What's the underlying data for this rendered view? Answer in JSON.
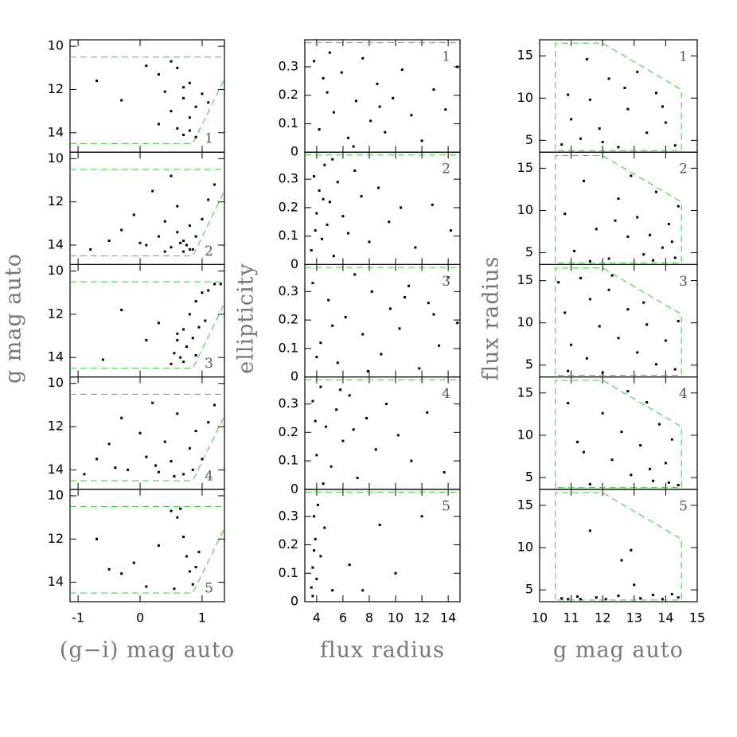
{
  "chart_data": [
    {
      "type": "scatter",
      "label": "1",
      "xlim": [
        -1.13,
        1.36
      ],
      "ylim": [
        14.9,
        9.7
      ],
      "yticks": [
        10,
        12,
        14
      ],
      "color": "#000000",
      "x": [
        -0.7,
        -0.3,
        0.1,
        0.3,
        0.4,
        0.5,
        0.6,
        0.6,
        0.7,
        0.7,
        0.8,
        0.8,
        0.9,
        0.9,
        1.0,
        0.5,
        0.3,
        0.8,
        0.7,
        1.1
      ],
      "y": [
        11.6,
        12.5,
        10.9,
        11.3,
        12.1,
        13.0,
        11.0,
        13.8,
        12.4,
        14.1,
        13.3,
        11.7,
        12.8,
        14.2,
        12.2,
        10.7,
        13.6,
        13.9,
        11.9,
        12.6
      ],
      "boundary": {
        "color": "#33cc33",
        "x": [
          -1.13,
          1.36,
          null,
          -1.13,
          0.85,
          1.36
        ],
        "y": [
          10.5,
          10.5,
          null,
          14.5,
          14.5,
          11.5
        ]
      }
    },
    {
      "type": "scatter",
      "label": "2",
      "xlim": [
        -1.13,
        1.36
      ],
      "ylim": [
        14.9,
        9.7
      ],
      "yticks": [
        10,
        12,
        14
      ],
      "color": "#000000",
      "x": [
        -0.8,
        -0.5,
        -0.3,
        -0.1,
        0.1,
        0.2,
        0.3,
        0.4,
        0.5,
        0.5,
        0.6,
        0.6,
        0.7,
        0.7,
        0.8,
        0.8,
        0.9,
        1.0,
        1.1,
        1.2,
        0.0,
        0.4,
        0.65,
        0.75,
        0.85
      ],
      "y": [
        14.2,
        13.8,
        13.3,
        12.6,
        14.0,
        11.5,
        13.6,
        12.9,
        14.1,
        10.8,
        13.4,
        12.2,
        14.3,
        13.8,
        13.1,
        14.2,
        13.6,
        12.8,
        11.9,
        11.2,
        13.9,
        14.3,
        13.9,
        14.0,
        14.2
      ],
      "boundary": {
        "color": "#33cc33",
        "x": [
          -1.13,
          1.36,
          null,
          -1.13,
          0.85,
          1.36
        ],
        "y": [
          10.5,
          10.5,
          null,
          14.5,
          14.5,
          11.5
        ]
      }
    },
    {
      "type": "scatter",
      "label": "3",
      "ylabel": "g mag auto",
      "xlim": [
        -1.13,
        1.36
      ],
      "ylim": [
        14.9,
        9.7
      ],
      "yticks": [
        10,
        12,
        14
      ],
      "color": "#000000",
      "x": [
        -0.6,
        -0.3,
        0.1,
        0.3,
        0.5,
        0.55,
        0.6,
        0.65,
        0.7,
        0.75,
        0.8,
        0.85,
        0.9,
        0.95,
        1.0,
        1.1,
        1.2,
        1.3,
        0.7,
        0.9,
        1.05,
        0.6
      ],
      "y": [
        14.1,
        11.8,
        13.2,
        12.4,
        14.3,
        13.8,
        13.2,
        14.0,
        12.7,
        13.5,
        12.0,
        13.1,
        11.4,
        12.6,
        11.0,
        10.9,
        10.6,
        10.6,
        14.2,
        13.9,
        12.3,
        12.9
      ],
      "boundary": {
        "color": "#33cc33",
        "x": [
          -1.13,
          1.36,
          null,
          -1.13,
          0.85,
          1.36
        ],
        "y": [
          10.5,
          10.5,
          null,
          14.5,
          14.5,
          11.5
        ]
      }
    },
    {
      "type": "scatter",
      "label": "4",
      "xlim": [
        -1.13,
        1.36
      ],
      "ylim": [
        14.9,
        9.7
      ],
      "yticks": [
        10,
        12,
        14
      ],
      "color": "#000000",
      "x": [
        -0.9,
        -0.7,
        -0.5,
        -0.3,
        -0.2,
        0.0,
        0.1,
        0.2,
        0.3,
        0.4,
        0.5,
        0.6,
        0.7,
        0.8,
        0.9,
        1.0,
        1.1,
        1.2,
        -0.4,
        0.25,
        0.55,
        0.85
      ],
      "y": [
        14.2,
        13.5,
        12.8,
        11.6,
        14.0,
        12.3,
        13.4,
        10.9,
        14.1,
        12.7,
        13.6,
        11.4,
        14.2,
        13.0,
        12.2,
        13.5,
        11.8,
        11.0,
        13.9,
        13.8,
        14.3,
        14.0
      ],
      "boundary": {
        "color": "#33cc33",
        "x": [
          -1.13,
          1.36,
          null,
          -1.13,
          0.85,
          1.36
        ],
        "y": [
          10.5,
          10.5,
          null,
          14.5,
          14.5,
          11.5
        ]
      }
    },
    {
      "type": "scatter",
      "label": "5",
      "xlabel": "(g−i) mag auto",
      "xlim": [
        -1.13,
        1.36
      ],
      "ylim": [
        14.9,
        9.7
      ],
      "xticks": [
        -1,
        0,
        1
      ],
      "yticks": [
        10,
        12,
        14
      ],
      "color": "#000000",
      "x": [
        -0.7,
        -0.5,
        -0.3,
        -0.1,
        0.1,
        0.3,
        0.5,
        0.6,
        0.7,
        0.75,
        0.8,
        0.85,
        0.9,
        0.95,
        0.65,
        0.55
      ],
      "y": [
        12.0,
        13.4,
        13.6,
        13.1,
        14.2,
        12.3,
        10.7,
        11.0,
        11.9,
        12.8,
        13.5,
        14.1,
        13.3,
        12.6,
        10.6,
        14.3
      ],
      "boundary": {
        "color": "#33cc33",
        "x": [
          -1.13,
          1.36,
          null,
          -1.13,
          0.85,
          1.36
        ],
        "y": [
          10.5,
          10.5,
          null,
          14.5,
          14.5,
          11.5
        ]
      }
    },
    {
      "type": "scatter",
      "label": "1",
      "xlim": [
        3.1,
        14.9
      ],
      "ylim": [
        0,
        0.395
      ],
      "yticks": [
        0,
        0.1,
        0.2,
        0.3
      ],
      "color": "#000000",
      "x": [
        3.8,
        4.2,
        4.8,
        5.3,
        5.9,
        6.4,
        7.0,
        7.5,
        8.1,
        8.6,
        9.2,
        9.8,
        10.5,
        11.2,
        12.0,
        12.9,
        13.8,
        14.7,
        5.0,
        6.8,
        8.8,
        4.5
      ],
      "y": [
        0.32,
        0.08,
        0.21,
        0.14,
        0.28,
        0.05,
        0.18,
        0.33,
        0.11,
        0.24,
        0.07,
        0.19,
        0.29,
        0.13,
        0.04,
        0.22,
        0.15,
        0.3,
        0.35,
        0.02,
        0.16,
        0.26
      ],
      "boundary": {
        "color": "#33cc33",
        "x": [
          3.1,
          14.9
        ],
        "y": [
          0.385,
          0.385
        ]
      }
    },
    {
      "type": "scatter",
      "label": "2",
      "xlim": [
        3.1,
        14.9
      ],
      "ylim": [
        0,
        0.395
      ],
      "yticks": [
        0,
        0.1,
        0.2,
        0.3
      ],
      "color": "#000000",
      "x": [
        3.6,
        3.8,
        4.0,
        4.2,
        4.4,
        4.6,
        4.8,
        5.0,
        5.3,
        5.6,
        6.0,
        6.4,
        6.9,
        7.4,
        8.0,
        8.7,
        9.5,
        10.4,
        11.5,
        12.8,
        14.2,
        3.9,
        4.5,
        5.2
      ],
      "y": [
        0.05,
        0.31,
        0.18,
        0.26,
        0.09,
        0.35,
        0.14,
        0.22,
        0.03,
        0.29,
        0.17,
        0.11,
        0.33,
        0.24,
        0.08,
        0.27,
        0.15,
        0.2,
        0.06,
        0.21,
        0.12,
        0.12,
        0.23,
        0.37
      ],
      "boundary": {
        "color": "#33cc33",
        "x": [
          3.1,
          14.9
        ],
        "y": [
          0.385,
          0.385
        ]
      }
    },
    {
      "type": "scatter",
      "label": "3",
      "ylabel": "ellipticity",
      "xlim": [
        3.1,
        14.9
      ],
      "ylim": [
        0,
        0.395
      ],
      "yticks": [
        0,
        0.1,
        0.2,
        0.3
      ],
      "color": "#000000",
      "x": [
        3.7,
        4.3,
        4.9,
        5.6,
        6.2,
        6.9,
        7.5,
        8.2,
        8.9,
        9.6,
        10.3,
        11.0,
        11.8,
        12.5,
        13.3,
        14.0,
        14.7,
        5.2,
        7.9,
        10.7,
        12.9,
        4.0
      ],
      "y": [
        0.33,
        0.12,
        0.27,
        0.05,
        0.21,
        0.36,
        0.15,
        0.3,
        0.08,
        0.24,
        0.17,
        0.32,
        0.03,
        0.26,
        0.11,
        0.35,
        0.19,
        0.18,
        0.02,
        0.28,
        0.22,
        0.07
      ],
      "boundary": {
        "color": "#33cc33",
        "x": [
          3.1,
          14.9
        ],
        "y": [
          0.385,
          0.385
        ]
      }
    },
    {
      "type": "scatter",
      "label": "4",
      "xlim": [
        3.1,
        14.9
      ],
      "ylim": [
        0,
        0.395
      ],
      "yticks": [
        0,
        0.1,
        0.2,
        0.3
      ],
      "color": "#000000",
      "x": [
        3.7,
        4.0,
        4.3,
        4.7,
        5.1,
        5.5,
        6.0,
        6.5,
        7.1,
        7.8,
        8.5,
        9.3,
        10.2,
        11.2,
        12.4,
        13.7,
        4.5,
        5.8,
        3.9,
        6.8
      ],
      "y": [
        0.31,
        0.12,
        0.36,
        0.22,
        0.08,
        0.28,
        0.17,
        0.33,
        0.04,
        0.25,
        0.14,
        0.3,
        0.19,
        0.1,
        0.27,
        0.06,
        0.02,
        0.35,
        0.24,
        0.21
      ],
      "boundary": {
        "color": "#33cc33",
        "x": [
          3.1,
          14.9
        ],
        "y": [
          0.385,
          0.385
        ]
      }
    },
    {
      "type": "scatter",
      "label": "5",
      "xlabel": "flux radius",
      "xlim": [
        3.1,
        14.9
      ],
      "ylim": [
        0,
        0.395
      ],
      "xticks": [
        4,
        6,
        8,
        10,
        12,
        14
      ],
      "yticks": [
        0,
        0.1,
        0.2,
        0.3
      ],
      "color": "#000000",
      "x": [
        3.6,
        3.7,
        3.8,
        3.9,
        4.0,
        4.1,
        3.7,
        4.3,
        4.6,
        5.2,
        6.5,
        8.8,
        10.0,
        12.0,
        7.5,
        3.8
      ],
      "y": [
        0.05,
        0.12,
        0.3,
        0.22,
        0.08,
        0.34,
        0.02,
        0.16,
        0.26,
        0.04,
        0.13,
        0.27,
        0.1,
        0.3,
        0.04,
        0.18
      ],
      "boundary": {
        "color": "#33cc33",
        "x": [
          3.1,
          14.9
        ],
        "y": [
          0.385,
          0.385
        ]
      }
    },
    {
      "type": "scatter",
      "label": "1",
      "xlim": [
        10,
        15
      ],
      "ylim": [
        3.6,
        16.9
      ],
      "yticks": [
        5,
        10,
        15
      ],
      "color": "#000000",
      "x": [
        10.7,
        11.0,
        11.3,
        11.6,
        11.9,
        12.2,
        12.5,
        12.8,
        13.1,
        13.4,
        13.7,
        14.0,
        14.3,
        11.5,
        12.7,
        13.9,
        10.9,
        12.0
      ],
      "y": [
        4.5,
        7.5,
        5.2,
        9.8,
        6.4,
        12.3,
        4.2,
        8.7,
        13.1,
        5.9,
        10.6,
        7.1,
        4.4,
        14.6,
        11.2,
        9.0,
        10.4,
        4.8
      ],
      "boundary": {
        "color": "#33cc33",
        "x": [
          10.5,
          10.5,
          12,
          14.5,
          14.5,
          10.5
        ],
        "y": [
          3.8,
          16.5,
          16.5,
          11,
          3.8,
          3.8
        ]
      }
    },
    {
      "type": "scatter",
      "label": "2",
      "xlim": [
        10,
        15
      ],
      "ylim": [
        3.6,
        16.9
      ],
      "yticks": [
        5,
        10,
        15
      ],
      "color": "#000000",
      "x": [
        10.8,
        11.1,
        11.4,
        11.8,
        12.2,
        12.5,
        12.8,
        13.1,
        13.3,
        13.5,
        13.7,
        13.9,
        14.1,
        14.3,
        14.4,
        12.9,
        13.6,
        14.2,
        11.6,
        12.4
      ],
      "y": [
        9.6,
        5.2,
        13.5,
        7.8,
        4.3,
        11.4,
        6.9,
        9.2,
        4.8,
        7.1,
        12.2,
        5.6,
        8.4,
        4.4,
        10.5,
        14.1,
        4.1,
        6.3,
        4.0,
        8.8
      ],
      "boundary": {
        "color": "#33cc33",
        "x": [
          10.5,
          10.5,
          12,
          14.5,
          14.5,
          10.5
        ],
        "y": [
          3.8,
          16.5,
          16.5,
          11,
          3.8,
          3.8
        ]
      }
    },
    {
      "type": "scatter",
      "label": "3",
      "ylabel": "flux radius",
      "xlim": [
        10,
        15
      ],
      "ylim": [
        3.6,
        16.9
      ],
      "yticks": [
        5,
        10,
        15
      ],
      "color": "#000000",
      "x": [
        10.6,
        10.8,
        11.0,
        11.3,
        11.6,
        11.9,
        12.2,
        12.5,
        12.8,
        13.1,
        13.4,
        13.7,
        14.0,
        14.3,
        10.9,
        11.5,
        12.3,
        13.3,
        14.4,
        12.0
      ],
      "y": [
        14.8,
        11.2,
        7.4,
        15.3,
        12.8,
        9.6,
        13.9,
        8.2,
        11.6,
        6.5,
        9.8,
        5.1,
        7.9,
        4.5,
        4.3,
        5.8,
        15.6,
        12.4,
        10.2,
        4.1
      ],
      "boundary": {
        "color": "#33cc33",
        "x": [
          10.5,
          10.5,
          12,
          14.5,
          14.5,
          10.5
        ],
        "y": [
          3.8,
          16.5,
          16.5,
          11,
          3.8,
          3.8
        ]
      }
    },
    {
      "type": "scatter",
      "label": "4",
      "xlim": [
        10,
        15
      ],
      "ylim": [
        3.6,
        16.9
      ],
      "yticks": [
        5,
        10,
        15
      ],
      "color": "#000000",
      "x": [
        10.9,
        11.2,
        11.6,
        12.0,
        12.3,
        12.6,
        12.9,
        13.2,
        13.4,
        13.6,
        13.8,
        14.0,
        14.2,
        14.4,
        12.8,
        13.5,
        14.1,
        11.4
      ],
      "y": [
        13.8,
        9.2,
        4.2,
        12.6,
        7.1,
        10.4,
        5.3,
        8.8,
        13.9,
        4.6,
        11.3,
        6.7,
        9.5,
        4.1,
        15.2,
        6.0,
        4.4,
        8.0
      ],
      "boundary": {
        "color": "#33cc33",
        "x": [
          10.5,
          10.5,
          12,
          14.5,
          14.5,
          10.5
        ],
        "y": [
          3.8,
          16.5,
          16.5,
          11,
          3.8,
          3.8
        ]
      }
    },
    {
      "type": "scatter",
      "label": "5",
      "xlabel": "g mag auto",
      "xlim": [
        10,
        15
      ],
      "ylim": [
        3.6,
        16.9
      ],
      "xticks": [
        10,
        11,
        12,
        13,
        14,
        15
      ],
      "yticks": [
        5,
        10,
        15
      ],
      "color": "#000000",
      "x": [
        10.7,
        10.9,
        11.2,
        11.6,
        11.8,
        12.1,
        12.5,
        12.9,
        13.2,
        13.6,
        13.9,
        14.2,
        14.4,
        12.6,
        13.0,
        11.3
      ],
      "y": [
        4.0,
        3.9,
        4.2,
        12.0,
        4.1,
        3.9,
        4.3,
        9.7,
        4.0,
        4.4,
        3.9,
        4.5,
        4.1,
        8.5,
        5.6,
        3.9
      ],
      "boundary": {
        "color": "#33cc33",
        "x": [
          10.5,
          10.5,
          12,
          14.5,
          14.5,
          10.5
        ],
        "y": [
          3.8,
          16.5,
          16.5,
          11,
          3.8,
          3.8
        ]
      }
    }
  ]
}
